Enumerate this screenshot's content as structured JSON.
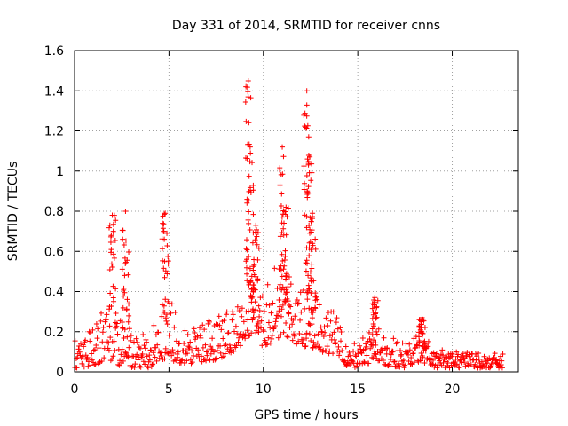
{
  "chart_data": {
    "type": "scatter",
    "title": "Day 331 of 2014, SRMTID for receiver cnns",
    "xlabel": "GPS time / hours",
    "ylabel": "SRMTID / TECUs",
    "xlim": [
      0,
      23.5
    ],
    "ylim": [
      0,
      1.6
    ],
    "grid": true,
    "x_ticks": [
      0,
      5,
      10,
      15,
      20
    ],
    "x_tick_labels": [
      "0",
      "5",
      "10",
      "15",
      "20"
    ],
    "y_ticks": [
      0,
      0.2,
      0.4,
      0.6,
      0.8,
      1,
      1.2,
      1.4,
      1.6
    ],
    "y_tick_labels": [
      "0",
      "0.2",
      "0.4",
      "0.6",
      "0.8",
      "1",
      "1.2",
      "1.4",
      "1.6"
    ],
    "marker": "+",
    "series_color": "#ff0000",
    "x_range_of_data": [
      0,
      22.7
    ],
    "features": [
      {
        "x": 2.0,
        "y": 0.78
      },
      {
        "x": 2.7,
        "y": 0.8
      },
      {
        "x": 4.8,
        "y": 0.79
      },
      {
        "x": 9.2,
        "y": 1.45
      },
      {
        "x": 9.3,
        "y": 1.12
      },
      {
        "x": 9.6,
        "y": 0.73
      },
      {
        "x": 11.0,
        "y": 1.12
      },
      {
        "x": 11.2,
        "y": 0.82
      },
      {
        "x": 12.3,
        "y": 1.4
      },
      {
        "x": 12.4,
        "y": 1.17
      },
      {
        "x": 12.6,
        "y": 0.79
      },
      {
        "x": 15.9,
        "y": 0.37
      },
      {
        "x": 18.4,
        "y": 0.27
      }
    ]
  }
}
